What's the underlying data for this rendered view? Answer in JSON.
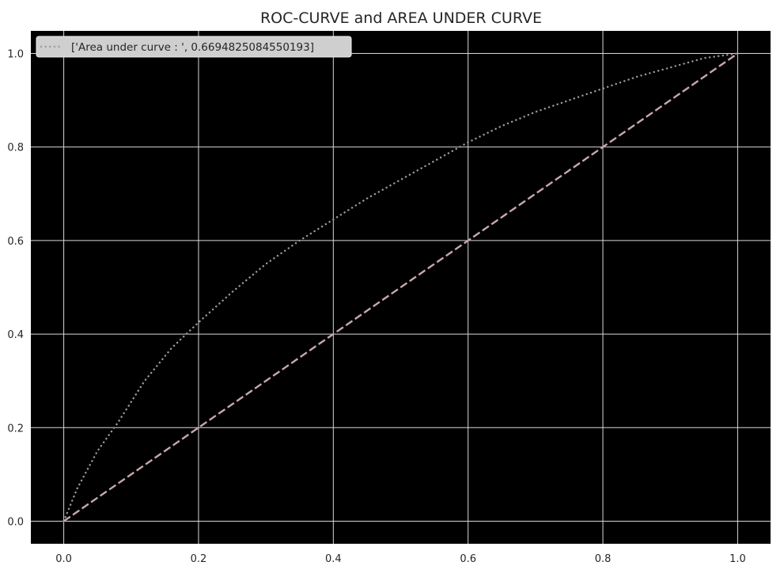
{
  "chart_data": {
    "type": "line",
    "title": "ROC-CURVE and AREA UNDER CURVE",
    "xlabel": "",
    "ylabel": "",
    "xlim": [
      -0.05,
      1.05
    ],
    "ylim": [
      -0.05,
      1.05
    ],
    "x_ticks": [
      "0.0",
      "0.2",
      "0.4",
      "0.6",
      "0.8",
      "1.0"
    ],
    "y_ticks": [
      "0.0",
      "0.2",
      "0.4",
      "0.6",
      "0.8",
      "1.0"
    ],
    "grid": true,
    "legend_position": "top-left",
    "background_color": "#000000",
    "grid_color": "#d8d8d8",
    "series": [
      {
        "name": "['Area under curve : ', 0.6694825084550193]",
        "style": "dotted",
        "color": "#9e9a9a",
        "x": [
          0.0,
          0.02,
          0.05,
          0.08,
          0.12,
          0.16,
          0.2,
          0.25,
          0.3,
          0.35,
          0.4,
          0.45,
          0.5,
          0.55,
          0.6,
          0.65,
          0.7,
          0.75,
          0.8,
          0.85,
          0.9,
          0.95,
          1.0
        ],
        "y": [
          0.0,
          0.07,
          0.15,
          0.21,
          0.3,
          0.37,
          0.425,
          0.49,
          0.55,
          0.6,
          0.645,
          0.69,
          0.73,
          0.77,
          0.81,
          0.845,
          0.875,
          0.9,
          0.925,
          0.95,
          0.97,
          0.99,
          1.0
        ]
      },
      {
        "name": "",
        "style": "dashed",
        "color": "#c8a8ac",
        "x": [
          0.0,
          1.0
        ],
        "y": [
          0.0,
          1.0
        ]
      }
    ]
  }
}
